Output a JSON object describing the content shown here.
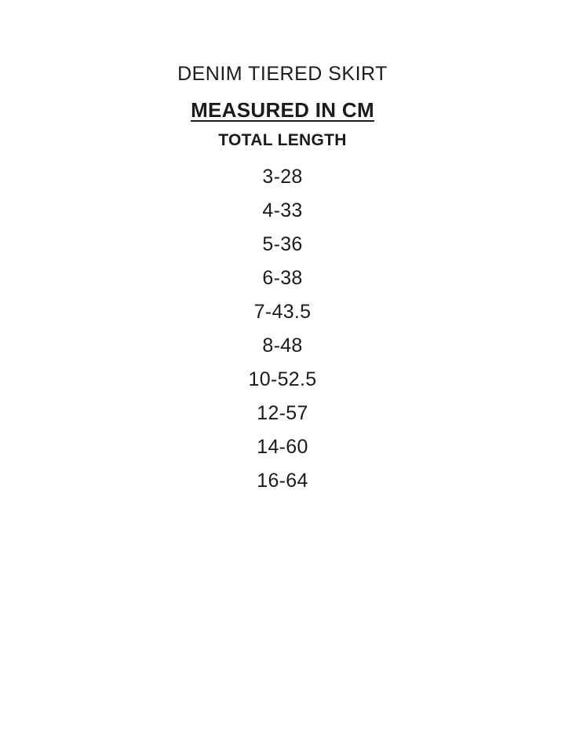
{
  "chart": {
    "title": "DENIM TIERED SKIRT",
    "subtitle": "MEASURED IN CM",
    "column_header": "TOTAL LENGTH",
    "unit": "cm",
    "rows": [
      "3-28",
      "4-33",
      "5-36",
      "6-38",
      "7-43.5",
      "8-48",
      "10-52.5",
      "12-57",
      "14-60",
      "16-64"
    ]
  },
  "colors": {
    "background": "#ffffff",
    "text": "#1b1b1b"
  }
}
